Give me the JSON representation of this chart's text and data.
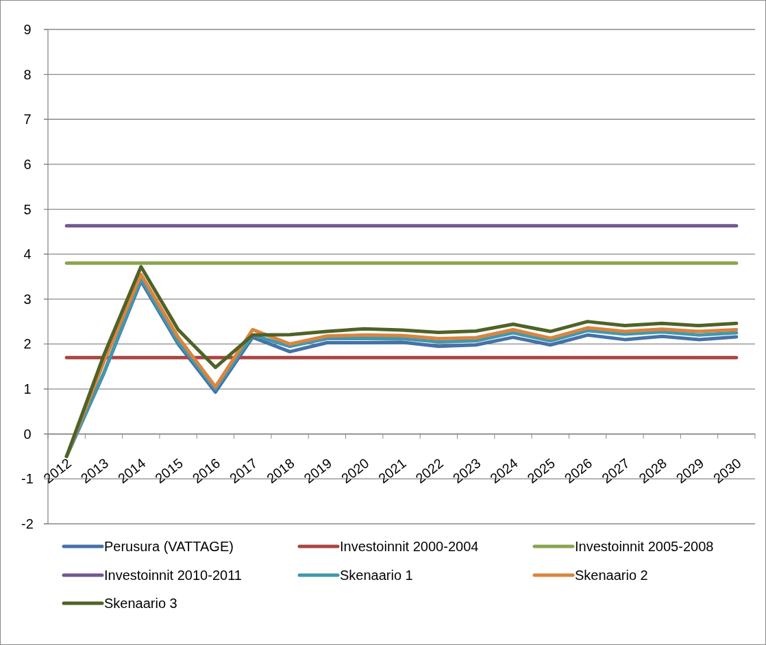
{
  "chart_data": {
    "type": "line",
    "categories": [
      "2012",
      "2013",
      "2014",
      "2015",
      "2016",
      "2017",
      "2018",
      "2019",
      "2020",
      "2021",
      "2022",
      "2023",
      "2024",
      "2025",
      "2026",
      "2027",
      "2028",
      "2029",
      "2030"
    ],
    "ylim": [
      -2,
      9
    ],
    "yticks": [
      -2,
      -1,
      0,
      1,
      2,
      3,
      4,
      5,
      6,
      7,
      8,
      9
    ],
    "grid": "y",
    "legend": "bottom",
    "marker": "none",
    "line_style": "solid",
    "series": [
      {
        "name": "Perusura (VATTAGE)",
        "color": "#4572a7",
        "values": [
          -0.5,
          1.35,
          3.4,
          2.0,
          0.93,
          2.15,
          1.83,
          2.03,
          2.03,
          2.04,
          1.95,
          1.98,
          2.15,
          1.98,
          2.2,
          2.1,
          2.17,
          2.1,
          2.16
        ]
      },
      {
        "name": "Investoinnit  2000-2004",
        "color": "#aa4643",
        "values": [
          1.7,
          1.7,
          1.7,
          1.7,
          1.7,
          1.7,
          1.7,
          1.7,
          1.7,
          1.7,
          1.7,
          1.7,
          1.7,
          1.7,
          1.7,
          1.7,
          1.7,
          1.7,
          1.7
        ]
      },
      {
        "name": "Investoinnit 2005-2008",
        "color": "#89a54e",
        "values": [
          3.8,
          3.8,
          3.8,
          3.8,
          3.8,
          3.8,
          3.8,
          3.8,
          3.8,
          3.8,
          3.8,
          3.8,
          3.8,
          3.8,
          3.8,
          3.8,
          3.8,
          3.8,
          3.8
        ]
      },
      {
        "name": "Investoinnit 2010-2011",
        "color": "#71588f",
        "values": [
          4.63,
          4.63,
          4.63,
          4.63,
          4.63,
          4.63,
          4.63,
          4.63,
          4.63,
          4.63,
          4.63,
          4.63,
          4.63,
          4.63,
          4.63,
          4.63,
          4.63,
          4.63,
          4.63
        ]
      },
      {
        "name": "Skenaario 1",
        "color": "#4198af",
        "values": [
          -0.5,
          1.35,
          3.45,
          2.05,
          1.0,
          2.2,
          1.95,
          2.12,
          2.12,
          2.12,
          2.05,
          2.07,
          2.25,
          2.07,
          2.3,
          2.22,
          2.27,
          2.2,
          2.25
        ]
      },
      {
        "name": "Skenaario 2",
        "color": "#db843d",
        "values": [
          -0.5,
          1.6,
          3.55,
          2.15,
          1.05,
          2.32,
          2.0,
          2.18,
          2.2,
          2.19,
          2.12,
          2.14,
          2.32,
          2.13,
          2.36,
          2.28,
          2.33,
          2.28,
          2.32
        ]
      },
      {
        "name": "Skenaario 3",
        "color": "#4f6228",
        "values": [
          -0.5,
          1.75,
          3.72,
          2.32,
          1.48,
          2.2,
          2.21,
          2.28,
          2.34,
          2.31,
          2.26,
          2.29,
          2.44,
          2.28,
          2.5,
          2.41,
          2.46,
          2.41,
          2.46
        ]
      }
    ]
  }
}
